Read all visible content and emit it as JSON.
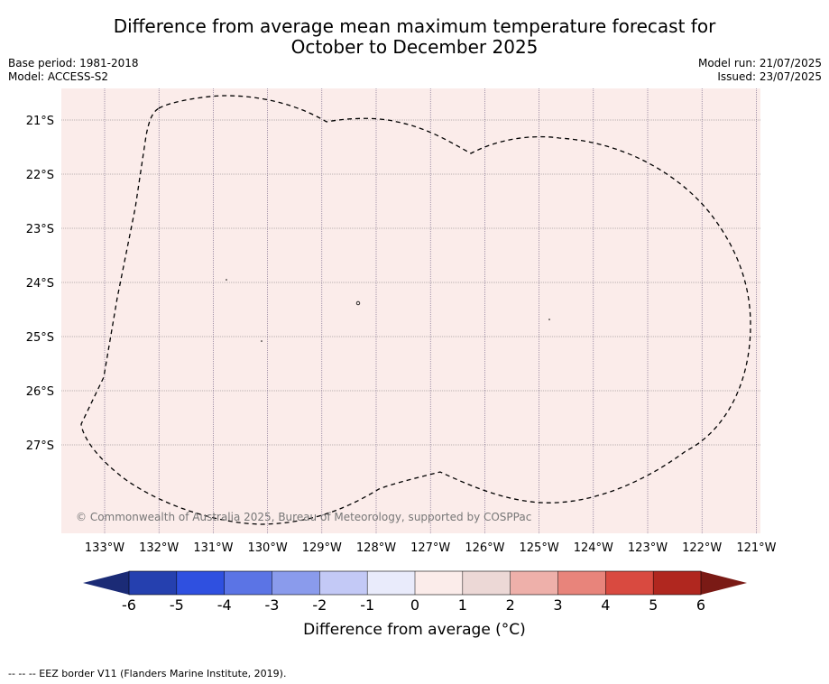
{
  "title_line1": "Difference from average mean maximum temperature forecast for",
  "title_line2": "October to December 2025",
  "base_period": "Base period: 1981-2018",
  "model": "Model: ACCESS-S2",
  "model_run": "Model run: 21/07/2025",
  "issued": "Issued: 23/07/2025",
  "copyright": "© Commonwealth of Australia 2025, Bureau of Meteorology, supported by COSPPac",
  "lat_labels": [
    "21°S",
    "22°S",
    "23°S",
    "24°S",
    "25°S",
    "26°S",
    "27°S"
  ],
  "lon_labels": [
    "133°W",
    "132°W",
    "131°W",
    "130°W",
    "129°W",
    "128°W",
    "127°W",
    "126°W",
    "125°W",
    "124°W",
    "123°W",
    "122°W",
    "121°W"
  ],
  "map_fill_color": "#fbecea",
  "colorbar": {
    "ticks": [
      "-6",
      "-5",
      "-4",
      "-3",
      "-2",
      "-1",
      "0",
      "1",
      "2",
      "3",
      "4",
      "5",
      "6"
    ],
    "colors": [
      "#2540af",
      "#2f50e0",
      "#5b74e5",
      "#8a9bec",
      "#c3c9f6",
      "#e9ebfb",
      "#fbecea",
      "#ecd8d6",
      "#eeb0aa",
      "#e8847b",
      "#d94a40",
      "#b0271f"
    ],
    "low_extend_color": "#1b2b76",
    "high_extend_color": "#7a1a15",
    "label": "Difference from average (°C)"
  },
  "legend_footer": "-- -- -- EEZ border V11 (Flanders Marine Institute, 2019)."
}
